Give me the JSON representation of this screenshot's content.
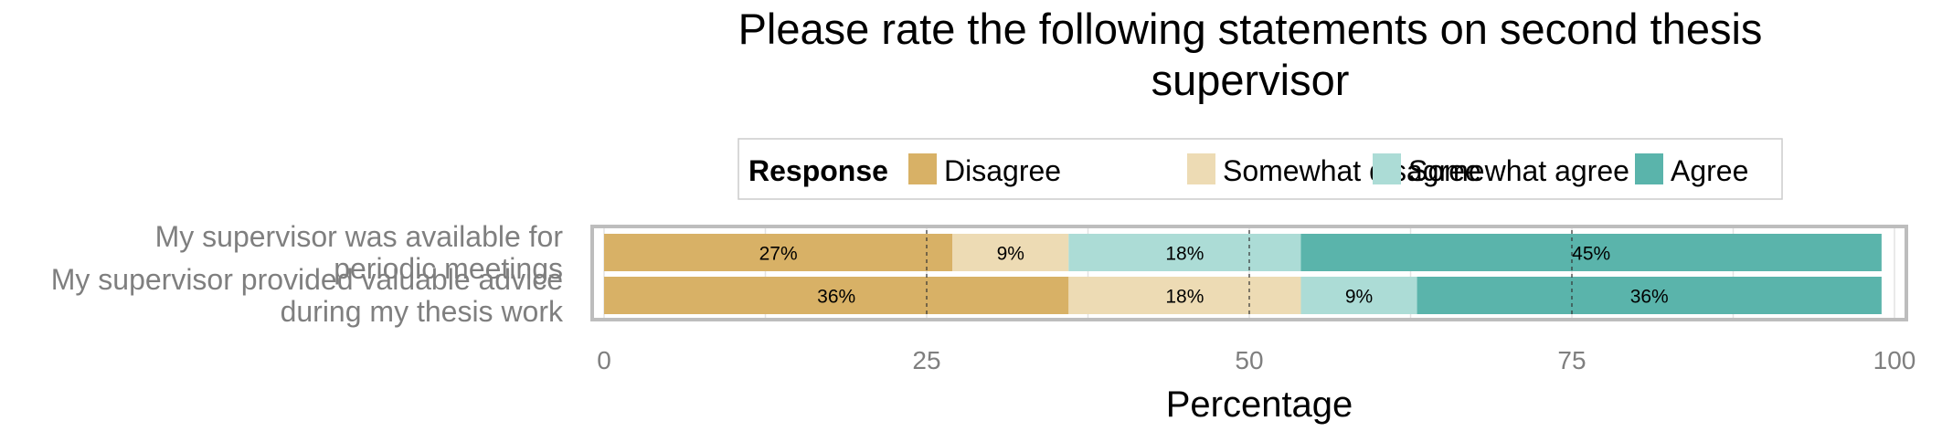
{
  "chart_data": {
    "type": "bar",
    "orientation": "horizontal",
    "stacked": true,
    "title_lines": [
      "Please rate the following statements on second thesis",
      "supervisor"
    ],
    "legend": {
      "title": "Response",
      "position": "top",
      "entries": [
        "Disagree",
        "Somewhat disagree",
        "Somewhat agree",
        "Agree"
      ]
    },
    "colors": [
      "#d8b166",
      "#eddbb4",
      "#acdcd6",
      "#5ab4ab"
    ],
    "categories": [
      [
        "My supervisor was available for",
        "periodic meetings"
      ],
      [
        "My supervisor provided valuable advice",
        "during my thesis work"
      ]
    ],
    "series": [
      {
        "name": "Disagree",
        "values": [
          27,
          36
        ]
      },
      {
        "name": "Somewhat disagree",
        "values": [
          9,
          18
        ]
      },
      {
        "name": "Somewhat agree",
        "values": [
          18,
          9
        ]
      },
      {
        "name": "Agree",
        "values": [
          45,
          36
        ]
      }
    ],
    "value_labels": [
      [
        "27%",
        "9%",
        "18%",
        "45%"
      ],
      [
        "36%",
        "18%",
        "9%",
        "36%"
      ]
    ],
    "xlabel": "Percentage",
    "xlim": [
      0,
      100
    ],
    "xticks": [
      0,
      25,
      50,
      75,
      100
    ],
    "reference_lines": [
      25,
      50,
      75
    ],
    "grid": true
  }
}
